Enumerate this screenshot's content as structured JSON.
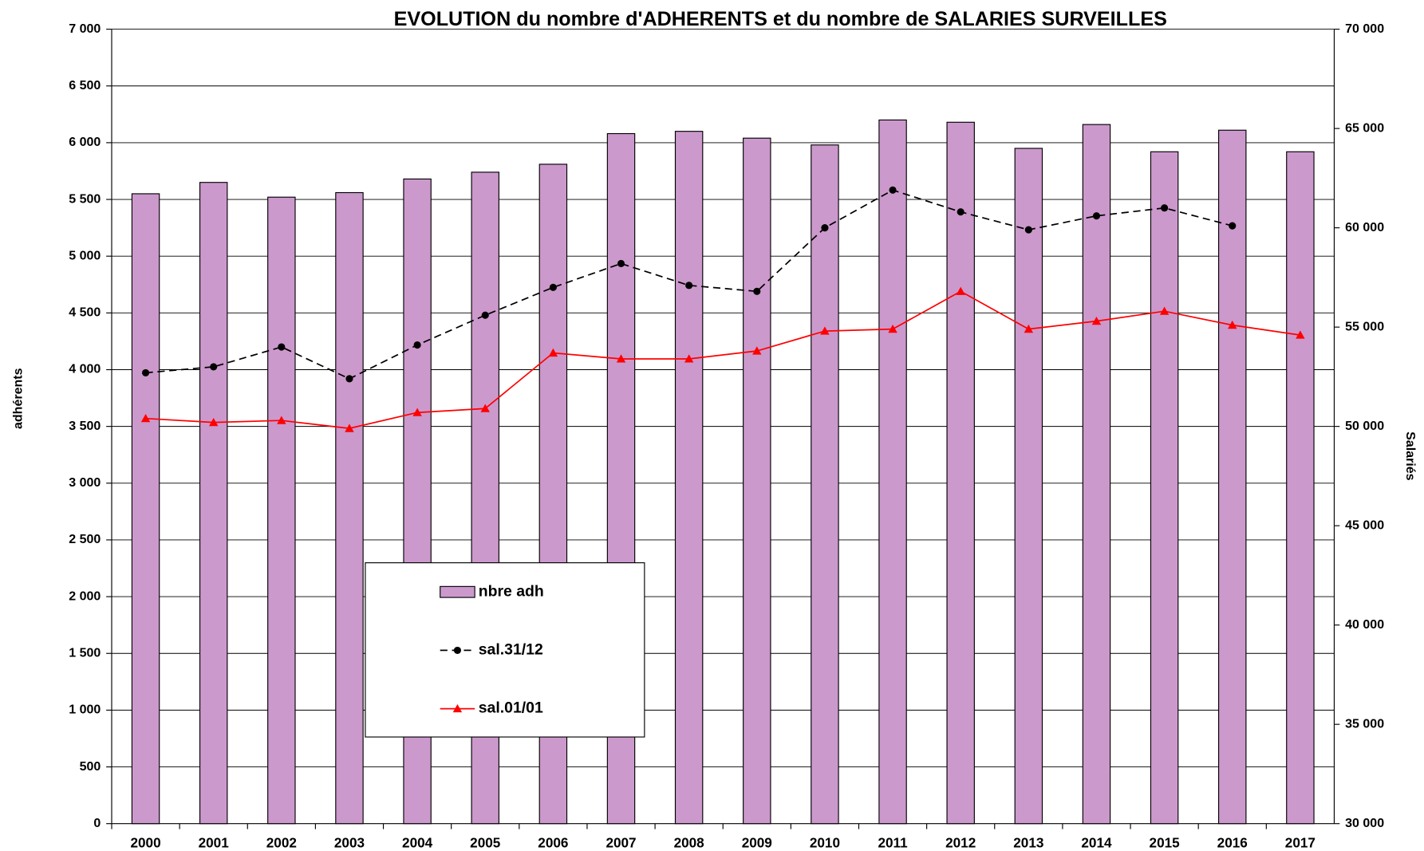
{
  "chart_data": {
    "type": "bar-line",
    "title": "EVOLUTION du nombre d'ADHERENTS et du nombre de SALARIES SURVEILLES",
    "y_label": "adhérents",
    "y2_label": "Salariés",
    "categories": [
      "2000",
      "2001",
      "2002",
      "2003",
      "2004",
      "2005",
      "2006",
      "2007",
      "2008",
      "2009",
      "2010",
      "2011",
      "2012",
      "2013",
      "2014",
      "2015",
      "2016",
      "2017"
    ],
    "series": [
      {
        "name": "nbre adh",
        "type": "bar",
        "color": "#cc99cc",
        "axis": "y",
        "values": [
          5550,
          5650,
          5520,
          5560,
          5680,
          5740,
          5810,
          6080,
          6100,
          6040,
          5980,
          6200,
          6180,
          5950,
          6160,
          5920,
          6110,
          5920
        ]
      },
      {
        "name": "sal.31/12",
        "type": "line",
        "color": "#000000",
        "dashed": true,
        "marker": "circle",
        "axis": "y2",
        "values": [
          52700,
          53000,
          54000,
          52400,
          54100,
          55600,
          57000,
          58200,
          57100,
          56800,
          60000,
          61900,
          60800,
          59900,
          60600,
          61000,
          60100,
          null
        ]
      },
      {
        "name": "sal.01/01",
        "type": "line",
        "color": "#ff0000",
        "dashed": false,
        "marker": "triangle",
        "axis": "y2",
        "values": [
          50400,
          50200,
          50300,
          49900,
          50700,
          50900,
          53700,
          53400,
          53400,
          53800,
          54800,
          54900,
          56800,
          54900,
          55300,
          55800,
          55100,
          54600
        ]
      }
    ],
    "ylim": [
      0,
      7000
    ],
    "yticks": [
      0,
      500,
      {
        "value": 1000,
        "label": "1 000"
      },
      {
        "value": 1500,
        "label": "1 500"
      },
      {
        "value": 2000,
        "label": "2 000"
      },
      {
        "value": 2500,
        "label": "2 500"
      },
      {
        "value": 3000,
        "label": "3 000"
      },
      {
        "value": 3500,
        "label": "3 500"
      },
      {
        "value": 4000,
        "label": "4 000"
      },
      {
        "value": 4500,
        "label": "4 500"
      },
      {
        "value": 5000,
        "label": "5 000"
      },
      {
        "value": 5500,
        "label": "5 500"
      },
      {
        "value": 6000,
        "label": "6 000"
      },
      {
        "value": 6500,
        "label": "6 500"
      },
      {
        "value": 7000,
        "label": "7 000"
      }
    ],
    "y2lim": [
      30000,
      70000
    ],
    "y2ticks": [
      {
        "value": 30000,
        "label": "30 000"
      },
      {
        "value": 35000,
        "label": "35 000"
      },
      {
        "value": 40000,
        "label": "40 000"
      },
      {
        "value": 45000,
        "label": "45 000"
      },
      {
        "value": 50000,
        "label": "50 000"
      },
      {
        "value": 55000,
        "label": "55 000"
      },
      {
        "value": 60000,
        "label": "60 000"
      },
      {
        "value": 65000,
        "label": "65 000"
      },
      {
        "value": 70000,
        "label": "70 000"
      }
    ],
    "grid": true,
    "legend": "center"
  }
}
